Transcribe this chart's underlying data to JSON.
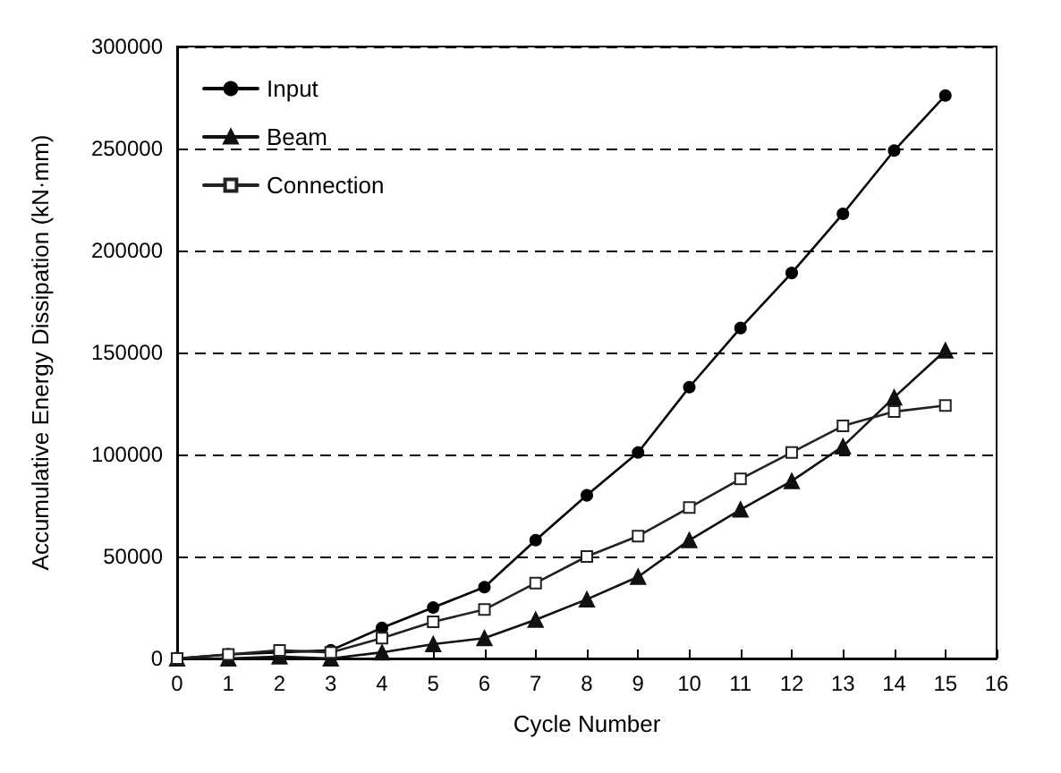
{
  "chart_data": {
    "type": "line",
    "xlabel": "Cycle Number",
    "ylabel": "Accumulative Energy Dissipation (kN·mm)",
    "x": [
      0,
      1,
      2,
      3,
      4,
      5,
      6,
      7,
      8,
      9,
      10,
      11,
      12,
      13,
      14,
      15
    ],
    "xlim": [
      0,
      16
    ],
    "xticks": [
      0,
      1,
      2,
      3,
      4,
      5,
      6,
      7,
      8,
      9,
      10,
      11,
      12,
      13,
      14,
      15,
      16
    ],
    "ylim": [
      0,
      300000
    ],
    "yticks": [
      0,
      50000,
      100000,
      150000,
      200000,
      250000,
      300000
    ],
    "grid": "y",
    "legend": "top left",
    "series": [
      {
        "name": "Input",
        "color": "#000000",
        "marker": "circle",
        "values": [
          0,
          2000,
          3000,
          4000,
          15000,
          25000,
          35000,
          58000,
          80000,
          101000,
          133000,
          162000,
          189000,
          218000,
          249000,
          276000
        ]
      },
      {
        "name": "Beam",
        "color": "#111111",
        "marker": "triangle",
        "values": [
          0,
          0,
          1000,
          0,
          3000,
          7000,
          10000,
          19000,
          29000,
          40000,
          58000,
          73000,
          87000,
          104000,
          128000,
          151000
        ]
      },
      {
        "name": "Connection",
        "color": "#222222",
        "marker": "square",
        "values": [
          0,
          2000,
          4000,
          3000,
          10000,
          18000,
          24000,
          37000,
          50000,
          60000,
          74000,
          88000,
          101000,
          114000,
          121000,
          124000
        ]
      }
    ]
  }
}
